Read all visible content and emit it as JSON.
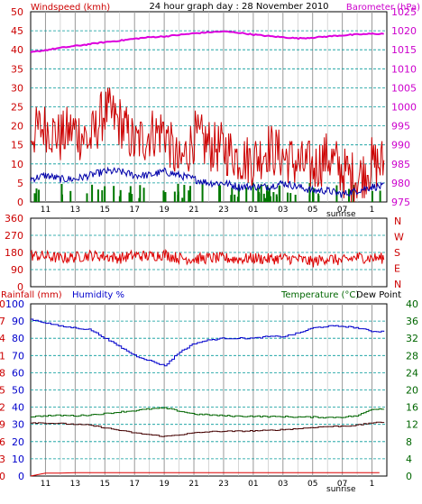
{
  "header": {
    "left_title": "Windspeed (kmh)",
    "center_title": "24 hour graph day : 28 November 2010",
    "right_title": "Barometer (hPa)"
  },
  "bottom_header": {
    "left_title": "Rainfall (mm)",
    "mid_title": "Humidity %",
    "right_title": "Temperature (°C)",
    "far_right_title": "Dew Point"
  },
  "sunrise_label": "sunrise",
  "x_ticks": [
    "11",
    "13",
    "15",
    "17",
    "19",
    "21",
    "23",
    "01",
    "03",
    "05",
    "07",
    "1"
  ],
  "colors": {
    "wind": "#cc0000",
    "gust": "#cc0000",
    "avg": "#0000aa",
    "rain_bar": "#007700",
    "baro": "#dd00dd",
    "dir": "#dd0000",
    "humidity": "#0000cc",
    "temp": "#006600",
    "dew": "#440000",
    "rain": "#dd0000",
    "axis_red": "#cc0000",
    "axis_blue": "#0000cc",
    "axis_green": "#006600",
    "grid": "#009999"
  },
  "chart_data": [
    {
      "type": "line",
      "title": "24 hour graph day : 28 November 2010",
      "ylabel": "Windspeed (kmh)",
      "y2label": "Barometer (hPa)",
      "ylim": [
        0,
        50
      ],
      "y2lim": [
        975,
        1025
      ],
      "yticks": [
        "0",
        "5",
        "10",
        "15",
        "20",
        "25",
        "30",
        "35",
        "40",
        "45",
        "50"
      ],
      "y2ticks": [
        "975",
        "980",
        "985",
        "990",
        "995",
        "1000",
        "1005",
        "1010",
        "1015",
        "1020",
        "1025"
      ],
      "x": [
        "10",
        "11",
        "12",
        "13",
        "14",
        "15",
        "16",
        "17",
        "18",
        "19",
        "20",
        "21",
        "22",
        "23",
        "00",
        "01",
        "02",
        "03",
        "04",
        "05",
        "06",
        "07",
        "08",
        "09"
      ],
      "series": [
        {
          "name": "Barometer (hPa)",
          "values": [
            1014.3,
            1014.9,
            1015.5,
            1016.0,
            1016.5,
            1017.0,
            1017.4,
            1017.9,
            1018.3,
            1018.5,
            1018.9,
            1019.3,
            1019.6,
            1019.8,
            1019.5,
            1019.0,
            1018.6,
            1018.3,
            1018.0,
            1018.2,
            1018.5,
            1018.8,
            1019.0,
            1019.2
          ]
        },
        {
          "name": "Gust (kmh)",
          "values": [
            18,
            20,
            17,
            19,
            16,
            24,
            21,
            15,
            18,
            19,
            9,
            17,
            15,
            14,
            12,
            11,
            14,
            12,
            10,
            9,
            12,
            8,
            6,
            10
          ]
        },
        {
          "name": "Average speed (kmh)",
          "values": [
            6,
            7,
            6,
            6,
            7,
            8,
            8,
            7,
            7,
            8,
            7,
            6,
            5,
            5,
            4,
            4,
            4,
            5,
            4,
            3,
            3,
            2,
            3,
            4
          ]
        }
      ]
    },
    {
      "type": "scatter",
      "ylabel": "Wind direction",
      "ylim": [
        0,
        360
      ],
      "yticks": [
        "0",
        "90",
        "180",
        "270",
        "360"
      ],
      "y2ticks": [
        "N",
        "E",
        "S",
        "W",
        "N"
      ],
      "x": [
        "10",
        "11",
        "12",
        "13",
        "14",
        "15",
        "16",
        "17",
        "18",
        "19",
        "20",
        "21",
        "22",
        "23",
        "00",
        "01",
        "02",
        "03",
        "04",
        "05",
        "06",
        "07",
        "08",
        "09"
      ],
      "values": [
        165,
        160,
        150,
        155,
        165,
        160,
        150,
        165,
        160,
        170,
        150,
        145,
        150,
        150,
        145,
        150,
        145,
        150,
        145,
        130,
        150,
        135,
        155,
        150
      ]
    },
    {
      "type": "line",
      "ylabel": "Rainfall (mm) / Humidity %",
      "y2label": "Temperature (°C) / Dew Point",
      "ylim": [
        0,
        30
      ],
      "yticks": [
        "0",
        "3",
        "6",
        "9",
        "12",
        "15",
        "18",
        "21",
        "24",
        "27",
        "30"
      ],
      "humidity_ticks": [
        "0",
        "10",
        "20",
        "30",
        "40",
        "50",
        "60",
        "70",
        "80",
        "90",
        "100"
      ],
      "y2lim": [
        0,
        40
      ],
      "y2ticks": [
        "0",
        "4",
        "8",
        "12",
        "16",
        "20",
        "24",
        "28",
        "32",
        "36",
        "40"
      ],
      "x": [
        "10",
        "11",
        "12",
        "13",
        "14",
        "15",
        "16",
        "17",
        "18",
        "19",
        "20",
        "21",
        "22",
        "23",
        "00",
        "01",
        "02",
        "03",
        "04",
        "05",
        "06",
        "07",
        "08",
        "09"
      ],
      "series": [
        {
          "name": "Humidity %",
          "values": [
            91,
            89,
            87,
            86,
            85,
            80,
            75,
            70,
            67,
            64,
            72,
            77,
            79,
            80,
            80,
            80,
            81,
            81,
            83,
            86,
            87,
            87,
            86,
            84
          ]
        },
        {
          "name": "Temperature (°C)",
          "values": [
            13.8,
            14.0,
            14.1,
            14.0,
            14.2,
            14.5,
            14.9,
            15.2,
            15.6,
            15.8,
            15.1,
            14.4,
            14.2,
            14.0,
            13.9,
            13.9,
            13.8,
            13.8,
            13.7,
            13.7,
            13.6,
            13.7,
            14.0,
            15.6
          ]
        },
        {
          "name": "Dew Point",
          "values": [
            12.4,
            12.3,
            12.2,
            12.0,
            11.8,
            11.2,
            10.6,
            10.0,
            9.6,
            9.2,
            9.6,
            10.0,
            10.3,
            10.4,
            10.4,
            10.5,
            10.6,
            10.8,
            11.0,
            11.3,
            11.5,
            11.6,
            11.8,
            12.4
          ]
        },
        {
          "name": "Rainfall (mm)",
          "values": [
            0,
            0.5,
            0.5,
            0.6,
            0.6,
            0.6,
            0.6,
            0.6,
            0.6,
            0.6,
            0.6,
            0.6,
            0.6,
            0.6,
            0.6,
            0.6,
            0.6,
            0.6,
            0.6,
            0.6,
            0.6,
            0.6,
            0.6,
            0.6
          ]
        }
      ]
    }
  ]
}
